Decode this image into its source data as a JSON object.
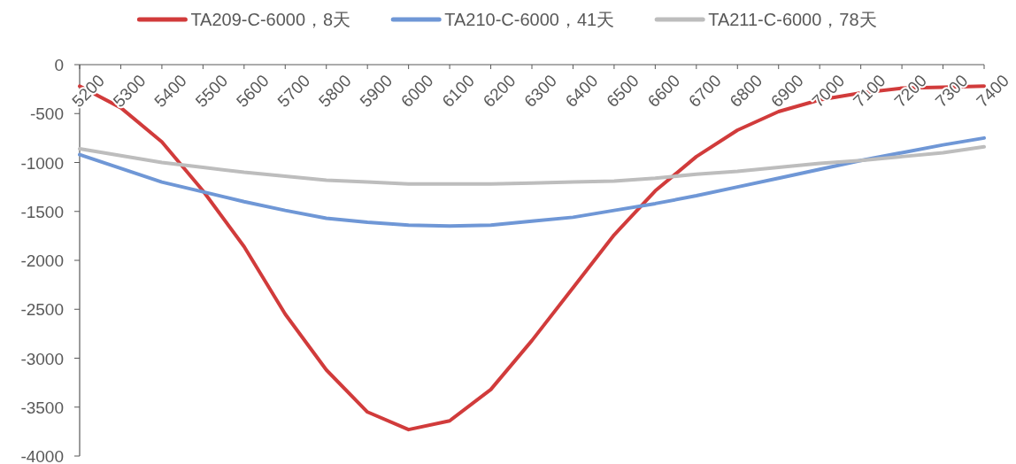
{
  "chart_data": {
    "type": "line",
    "categories": [
      "5200",
      "5300",
      "5400",
      "5500",
      "5600",
      "5700",
      "5800",
      "5900",
      "6000",
      "6100",
      "6200",
      "6300",
      "6400",
      "6500",
      "6600",
      "6700",
      "6800",
      "6900",
      "7000",
      "7100",
      "7200",
      "7300",
      "7400"
    ],
    "series": [
      {
        "name": "TA209-C-6000，8天",
        "color": "#d13b3b",
        "values": [
          -220,
          -440,
          -790,
          -1290,
          -1860,
          -2550,
          -3120,
          -3550,
          -3730,
          -3640,
          -3320,
          -2820,
          -2280,
          -1740,
          -1290,
          -940,
          -670,
          -480,
          -360,
          -290,
          -240,
          -230,
          -220
        ]
      },
      {
        "name": "TA210-C-6000，41天",
        "color": "#6f97d6",
        "values": [
          -920,
          -1060,
          -1200,
          -1300,
          -1400,
          -1490,
          -1570,
          -1610,
          -1640,
          -1650,
          -1640,
          -1600,
          -1560,
          -1490,
          -1420,
          -1340,
          -1250,
          -1160,
          -1070,
          -980,
          -900,
          -820,
          -750
        ]
      },
      {
        "name": "TA211-C-6000，78天",
        "color": "#bdbdbd",
        "values": [
          -860,
          -930,
          -1000,
          -1050,
          -1100,
          -1140,
          -1180,
          -1200,
          -1220,
          -1220,
          -1220,
          -1210,
          -1200,
          -1190,
          -1160,
          -1120,
          -1090,
          -1050,
          -1010,
          -980,
          -940,
          -900,
          -840
        ]
      }
    ],
    "ylim": [
      -4000,
      0
    ],
    "yticks": [
      0,
      -500,
      -1000,
      -1500,
      -2000,
      -2500,
      -3000,
      -3500,
      -4000
    ],
    "legend": "top",
    "grid": false
  }
}
